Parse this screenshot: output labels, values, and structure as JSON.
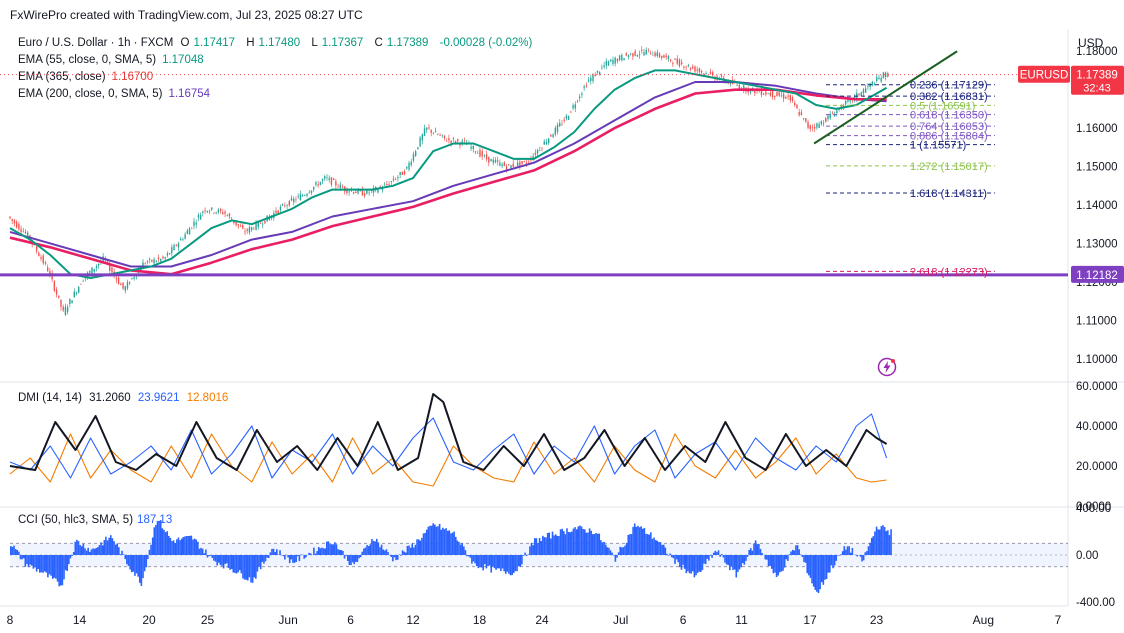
{
  "header": {
    "credit": "FxWirePro created with TradingView.com, Jul 23, 2025 08:27 UTC",
    "currency": "USD"
  },
  "legend": {
    "main": {
      "name": "Euro / U.S. Dollar · 1h · FXCM",
      "o_label": "O",
      "o": "1.17417",
      "h_label": "H",
      "h": "1.17480",
      "l_label": "L",
      "l": "1.17367",
      "c_label": "C",
      "c": "1.17389",
      "change": "-0.00028 (-0.02%)"
    },
    "ema55": {
      "label": "EMA (55, close, 0, SMA, 5)",
      "value": "1.17048"
    },
    "ema365": {
      "label": "EMA (365, close)",
      "value": "1.16700"
    },
    "ema200": {
      "label": "EMA (200, close, 0, SMA, 5)",
      "value": "1.16754"
    },
    "dmi": {
      "label": "DMI (14, 14)",
      "adx": "31.2060",
      "plus": "23.9621",
      "minus": "12.8016"
    },
    "cci": {
      "label": "CCI (50, hlc3, SMA, 5)",
      "value": "187.13"
    }
  },
  "price_tag": {
    "symbol": "EURUSD",
    "price": "1.17389",
    "countdown": "32:43"
  },
  "support_tag": {
    "price": "1.12182"
  },
  "colors": {
    "up": "#26a69a",
    "down": "#ef5350",
    "ema55": "#089981",
    "ema365": "#673ab7",
    "ema200": "#e91e63",
    "support": "#7e3fc1",
    "trend": "#1b5e20",
    "adx": "#131722",
    "plus": "#2962ff",
    "minus": "#f57c00",
    "cci": "#2962ff",
    "fib": "#1a237e",
    "fib_mid": "#7e57c2",
    "fib_green": "#8bc34a",
    "fib_red": "#d81b60"
  },
  "chart_data": {
    "type": "line",
    "price_axis": {
      "min": 1.095,
      "max": 1.185,
      "ticks": [
        "1.18000",
        "1.17000",
        "1.16000",
        "1.15000",
        "1.14000",
        "1.13000",
        "1.12000",
        "1.11000",
        "1.10000"
      ]
    },
    "dmi_axis": {
      "min": 0,
      "max": 60,
      "ticks": [
        "60.0000",
        "40.0000",
        "20.0000",
        "0.0000"
      ]
    },
    "cci_axis": {
      "min": -400,
      "max": 400,
      "ticks": [
        "400.00",
        "0.00",
        "-400.00"
      ]
    },
    "x_ticks": [
      "8",
      "14",
      "20",
      "25",
      "Jun",
      "6",
      "12",
      "18",
      "24",
      "Jul",
      "6",
      "11",
      "17",
      "23",
      "Aug",
      "7"
    ],
    "x_axis": {
      "min": 0,
      "max": 1050,
      "tick_x": [
        0,
        69,
        138,
        196,
        276,
        338,
        400,
        466,
        528,
        606,
        668,
        726,
        794,
        860,
        966,
        1040
      ]
    },
    "series": [
      {
        "key": "price",
        "x": [
          0,
          20,
          40,
          55,
          75,
          95,
          115,
          135,
          155,
          175,
          195,
          215,
          235,
          255,
          275,
          295,
          315,
          335,
          355,
          375,
          395,
          415,
          435,
          455,
          475,
          495,
          515,
          535,
          555,
          575,
          595,
          615,
          635,
          655,
          675,
          695,
          715,
          735,
          755,
          775,
          795,
          805,
          820,
          840,
          860,
          870
        ],
        "values": [
          1.137,
          1.132,
          1.123,
          1.112,
          1.121,
          1.126,
          1.118,
          1.125,
          1.126,
          1.132,
          1.139,
          1.138,
          1.133,
          1.136,
          1.14,
          1.143,
          1.147,
          1.144,
          1.143,
          1.145,
          1.149,
          1.16,
          1.157,
          1.156,
          1.152,
          1.15,
          1.151,
          1.157,
          1.163,
          1.172,
          1.177,
          1.179,
          1.18,
          1.178,
          1.176,
          1.174,
          1.172,
          1.17,
          1.169,
          1.168,
          1.16,
          1.161,
          1.164,
          1.168,
          1.172,
          1.174
        ]
      },
      {
        "key": "ema55",
        "x": [
          0,
          20,
          40,
          60,
          80,
          100,
          120,
          140,
          160,
          180,
          200,
          220,
          240,
          260,
          280,
          300,
          320,
          340,
          360,
          380,
          400,
          420,
          440,
          460,
          480,
          500,
          520,
          540,
          560,
          580,
          600,
          620,
          640,
          660,
          680,
          700,
          720,
          740,
          760,
          780,
          800,
          820,
          840,
          860,
          870
        ],
        "values": [
          1.134,
          1.131,
          1.127,
          1.122,
          1.121,
          1.122,
          1.123,
          1.124,
          1.126,
          1.13,
          1.134,
          1.136,
          1.135,
          1.137,
          1.139,
          1.142,
          1.144,
          1.144,
          1.144,
          1.145,
          1.147,
          1.154,
          1.156,
          1.156,
          1.154,
          1.152,
          1.152,
          1.155,
          1.159,
          1.165,
          1.17,
          1.173,
          1.175,
          1.175,
          1.174,
          1.173,
          1.172,
          1.171,
          1.17,
          1.169,
          1.166,
          1.165,
          1.166,
          1.169,
          1.1705
        ]
      },
      {
        "key": "ema365",
        "x": [
          0,
          40,
          80,
          120,
          160,
          200,
          240,
          280,
          320,
          360,
          400,
          440,
          480,
          520,
          560,
          600,
          640,
          680,
          720,
          760,
          800,
          840,
          870
        ],
        "values": [
          1.133,
          1.13,
          1.127,
          1.124,
          1.124,
          1.127,
          1.131,
          1.133,
          1.137,
          1.139,
          1.141,
          1.145,
          1.148,
          1.151,
          1.156,
          1.162,
          1.168,
          1.172,
          1.172,
          1.171,
          1.169,
          1.1675,
          1.167
        ]
      },
      {
        "key": "ema200",
        "x": [
          0,
          40,
          80,
          120,
          160,
          200,
          240,
          280,
          320,
          360,
          400,
          440,
          480,
          520,
          560,
          600,
          640,
          680,
          720,
          760,
          800,
          840,
          870
        ],
        "values": [
          1.1315,
          1.129,
          1.126,
          1.123,
          1.122,
          1.125,
          1.1285,
          1.131,
          1.1345,
          1.137,
          1.1395,
          1.143,
          1.146,
          1.149,
          1.154,
          1.16,
          1.165,
          1.169,
          1.17,
          1.17,
          1.1685,
          1.1675,
          1.1675
        ]
      },
      {
        "key": "adx",
        "x": [
          0,
          25,
          45,
          65,
          85,
          105,
          125,
          145,
          165,
          185,
          205,
          225,
          245,
          265,
          285,
          305,
          325,
          345,
          365,
          385,
          405,
          420,
          430,
          450,
          470,
          490,
          510,
          530,
          550,
          570,
          590,
          610,
          630,
          650,
          670,
          690,
          710,
          730,
          750,
          770,
          790,
          810,
          830,
          850,
          860,
          870
        ],
        "values": [
          20,
          18,
          42,
          28,
          45,
          22,
          18,
          26,
          20,
          42,
          24,
          18,
          38,
          22,
          30,
          18,
          34,
          20,
          42,
          18,
          24,
          56,
          52,
          22,
          18,
          30,
          20,
          36,
          18,
          24,
          38,
          20,
          34,
          18,
          30,
          22,
          42,
          24,
          18,
          36,
          20,
          28,
          20,
          38,
          34,
          31
        ]
      },
      {
        "key": "plus",
        "x": [
          0,
          20,
          40,
          60,
          80,
          100,
          120,
          140,
          160,
          180,
          200,
          220,
          240,
          260,
          280,
          300,
          320,
          340,
          360,
          380,
          400,
          420,
          440,
          460,
          480,
          500,
          520,
          540,
          560,
          580,
          600,
          620,
          640,
          660,
          680,
          700,
          720,
          740,
          760,
          780,
          800,
          820,
          840,
          855,
          870
        ],
        "values": [
          22,
          18,
          30,
          14,
          34,
          16,
          22,
          30,
          18,
          38,
          16,
          26,
          40,
          14,
          28,
          22,
          36,
          16,
          30,
          20,
          34,
          44,
          22,
          18,
          28,
          36,
          16,
          30,
          22,
          40,
          16,
          30,
          38,
          14,
          26,
          32,
          18,
          34,
          24,
          18,
          30,
          22,
          40,
          46,
          24
        ]
      },
      {
        "key": "minus",
        "x": [
          0,
          20,
          40,
          60,
          80,
          100,
          120,
          140,
          160,
          180,
          200,
          220,
          240,
          260,
          280,
          300,
          320,
          340,
          360,
          380,
          400,
          420,
          440,
          460,
          480,
          500,
          520,
          540,
          560,
          580,
          600,
          620,
          640,
          660,
          680,
          700,
          720,
          740,
          760,
          780,
          800,
          820,
          840,
          855,
          870
        ],
        "values": [
          16,
          24,
          12,
          36,
          14,
          28,
          18,
          12,
          30,
          14,
          36,
          20,
          12,
          32,
          16,
          26,
          12,
          34,
          16,
          24,
          12,
          10,
          30,
          20,
          14,
          12,
          32,
          16,
          24,
          12,
          30,
          18,
          12,
          36,
          20,
          14,
          28,
          14,
          22,
          34,
          16,
          26,
          14,
          12,
          13
        ]
      },
      {
        "key": "cci",
        "x": [
          0,
          15,
          30,
          50,
          65,
          80,
          100,
          115,
          130,
          145,
          160,
          180,
          200,
          220,
          240,
          260,
          280,
          300,
          320,
          340,
          360,
          380,
          400,
          420,
          440,
          460,
          480,
          500,
          520,
          540,
          560,
          580,
          600,
          620,
          640,
          660,
          680,
          700,
          720,
          740,
          760,
          780,
          800,
          815,
          830,
          845,
          860,
          875
        ],
        "values": [
          100,
          -80,
          -140,
          -260,
          120,
          40,
          160,
          -60,
          -240,
          320,
          120,
          150,
          -40,
          -120,
          -220,
          60,
          -60,
          30,
          120,
          -100,
          150,
          -40,
          90,
          260,
          180,
          -80,
          -130,
          -150,
          120,
          180,
          230,
          200,
          -30,
          260,
          140,
          -60,
          -190,
          40,
          -170,
          120,
          -200,
          90,
          -330,
          -100,
          80,
          -60,
          250,
          187
        ]
      }
    ],
    "fib_levels": [
      {
        "label": "0.236 (1.17129)",
        "value": 1.17129
      },
      {
        "label": "0.382 (1.16831)",
        "value": 1.16831
      },
      {
        "label": "0.5 (1.16591)",
        "value": 1.16591
      },
      {
        "label": "0.618 (1.16350)",
        "value": 1.1635
      },
      {
        "label": "0.764 (1.16053)",
        "value": 1.16053
      },
      {
        "label": "0.886 (1.15804)",
        "value": 1.15804
      },
      {
        "label": "1 (1.15571)",
        "value": 1.15571
      },
      {
        "label": "1.272 (1.15017)",
        "value": 1.15017
      },
      {
        "label": "1.618 (1.14311)",
        "value": 1.14311
      },
      {
        "label": "2.618 (1.12273)",
        "value": 1.12273
      }
    ],
    "support_line": 1.12182,
    "trend_line": {
      "x": [
        798,
        940
      ],
      "values": [
        1.156,
        1.18
      ]
    },
    "price_dotted": 1.17389
  }
}
